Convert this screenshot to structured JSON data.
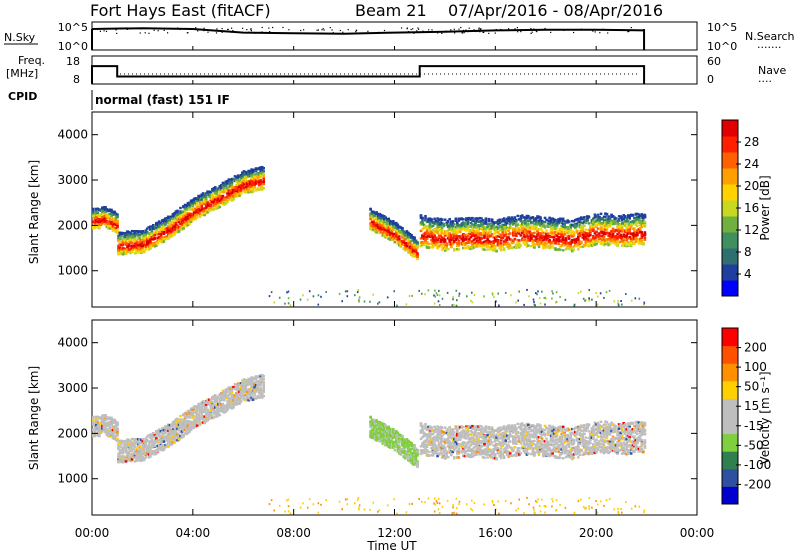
{
  "header": {
    "title": "Fort Hays East (fitACF)",
    "beam": "Beam 21",
    "date_range": "07/Apr/2016 - 08/Apr/2016"
  },
  "top_panel": {
    "left_label": "N.Sky",
    "left_ticks": [
      "10^5",
      "10^0"
    ],
    "right_ticks": [
      "10^5",
      "10^0"
    ],
    "right_label": "N.Search",
    "right_dots": "......."
  },
  "freq_panel": {
    "left_label_1": "Freq.",
    "left_label_2": "[MHz]",
    "left_ticks": [
      "18",
      "8"
    ],
    "right_ticks": [
      "60",
      "0"
    ],
    "right_label": "Nave",
    "right_dots": "....",
    "cpid_label": "CPID",
    "cpid_value": "normal (fast) 151 IF"
  },
  "colors": {
    "power_scale": [
      "#0000ff",
      "#1f3f9f",
      "#2f6f6f",
      "#3f8f5f",
      "#6fb03f",
      "#c8d820",
      "#ffd200",
      "#ffa000",
      "#ff6000",
      "#ff2000",
      "#e00000"
    ],
    "velocity_scale": [
      "#ff0000",
      "#ff5000",
      "#ff9000",
      "#ffd000",
      "#bebebe",
      "#bebebe",
      "#7fcf3f",
      "#2f7f4f",
      "#2f4fa0",
      "#0000d0"
    ]
  },
  "chart_data": [
    {
      "type": "heatmap",
      "panel": "power",
      "ylabel": "Slant Range [km]",
      "yticks": [
        "4000",
        "3000",
        "2000",
        "1000"
      ],
      "ylim": [
        200,
        4500
      ],
      "xlim": [
        "00:00",
        "24:00"
      ],
      "colorbar_label": "Power [dB]",
      "colorbar_ticks": [
        "28",
        "24",
        "20",
        "16",
        "12",
        "8",
        "4"
      ],
      "colorbar_range": [
        0,
        32
      ],
      "scatter_echo_tracks": [
        {
          "x": [
            0.0,
            0.5,
            1.0
          ],
          "y": [
            2100,
            2150,
            2000
          ]
        },
        {
          "x": [
            1.0,
            2.0,
            3.0,
            4.0,
            5.0,
            6.0,
            6.8
          ],
          "y": [
            1550,
            1600,
            1900,
            2300,
            2600,
            2900,
            3000
          ]
        },
        {
          "x": [
            11.0,
            12.0,
            12.9
          ],
          "y": [
            2100,
            1800,
            1400
          ]
        },
        {
          "x": [
            13.0,
            14.0,
            15.0,
            16.0,
            17.0,
            18.0,
            19.0,
            20.0,
            21.0,
            21.9
          ],
          "y": [
            1800,
            1700,
            1750,
            1700,
            1800,
            1750,
            1700,
            1850,
            1800,
            1850
          ]
        }
      ]
    },
    {
      "type": "heatmap",
      "panel": "velocity",
      "ylabel": "Slant Range [km]",
      "yticks": [
        "4000",
        "3000",
        "2000",
        "1000"
      ],
      "ylim": [
        200,
        4500
      ],
      "xlabel": "Time UT",
      "xticks": [
        "00:00",
        "04:00",
        "08:00",
        "12:00",
        "16:00",
        "20:00",
        "00:00"
      ],
      "colorbar_label": "Velocity [m s⁻¹]",
      "colorbar_ticks": [
        "200",
        "100",
        "50",
        "15",
        "-15",
        "-50",
        "-100",
        "-200"
      ],
      "colorbar_range": [
        -250,
        250
      ]
    },
    {
      "type": "line",
      "panel": "n_sky",
      "x": [
        0,
        2,
        4,
        6,
        8,
        10,
        12,
        14,
        16,
        18,
        20,
        21.9
      ],
      "y": [
        0.75,
        0.78,
        0.75,
        0.62,
        0.6,
        0.58,
        0.62,
        0.65,
        0.7,
        0.72,
        0.72,
        0.7
      ]
    },
    {
      "type": "line",
      "panel": "frequency",
      "x": [
        0,
        1.0,
        1.0,
        13.0,
        13.0,
        21.9
      ],
      "y": [
        14.5,
        14.5,
        10.5,
        10.5,
        14.5,
        14.5
      ]
    }
  ]
}
